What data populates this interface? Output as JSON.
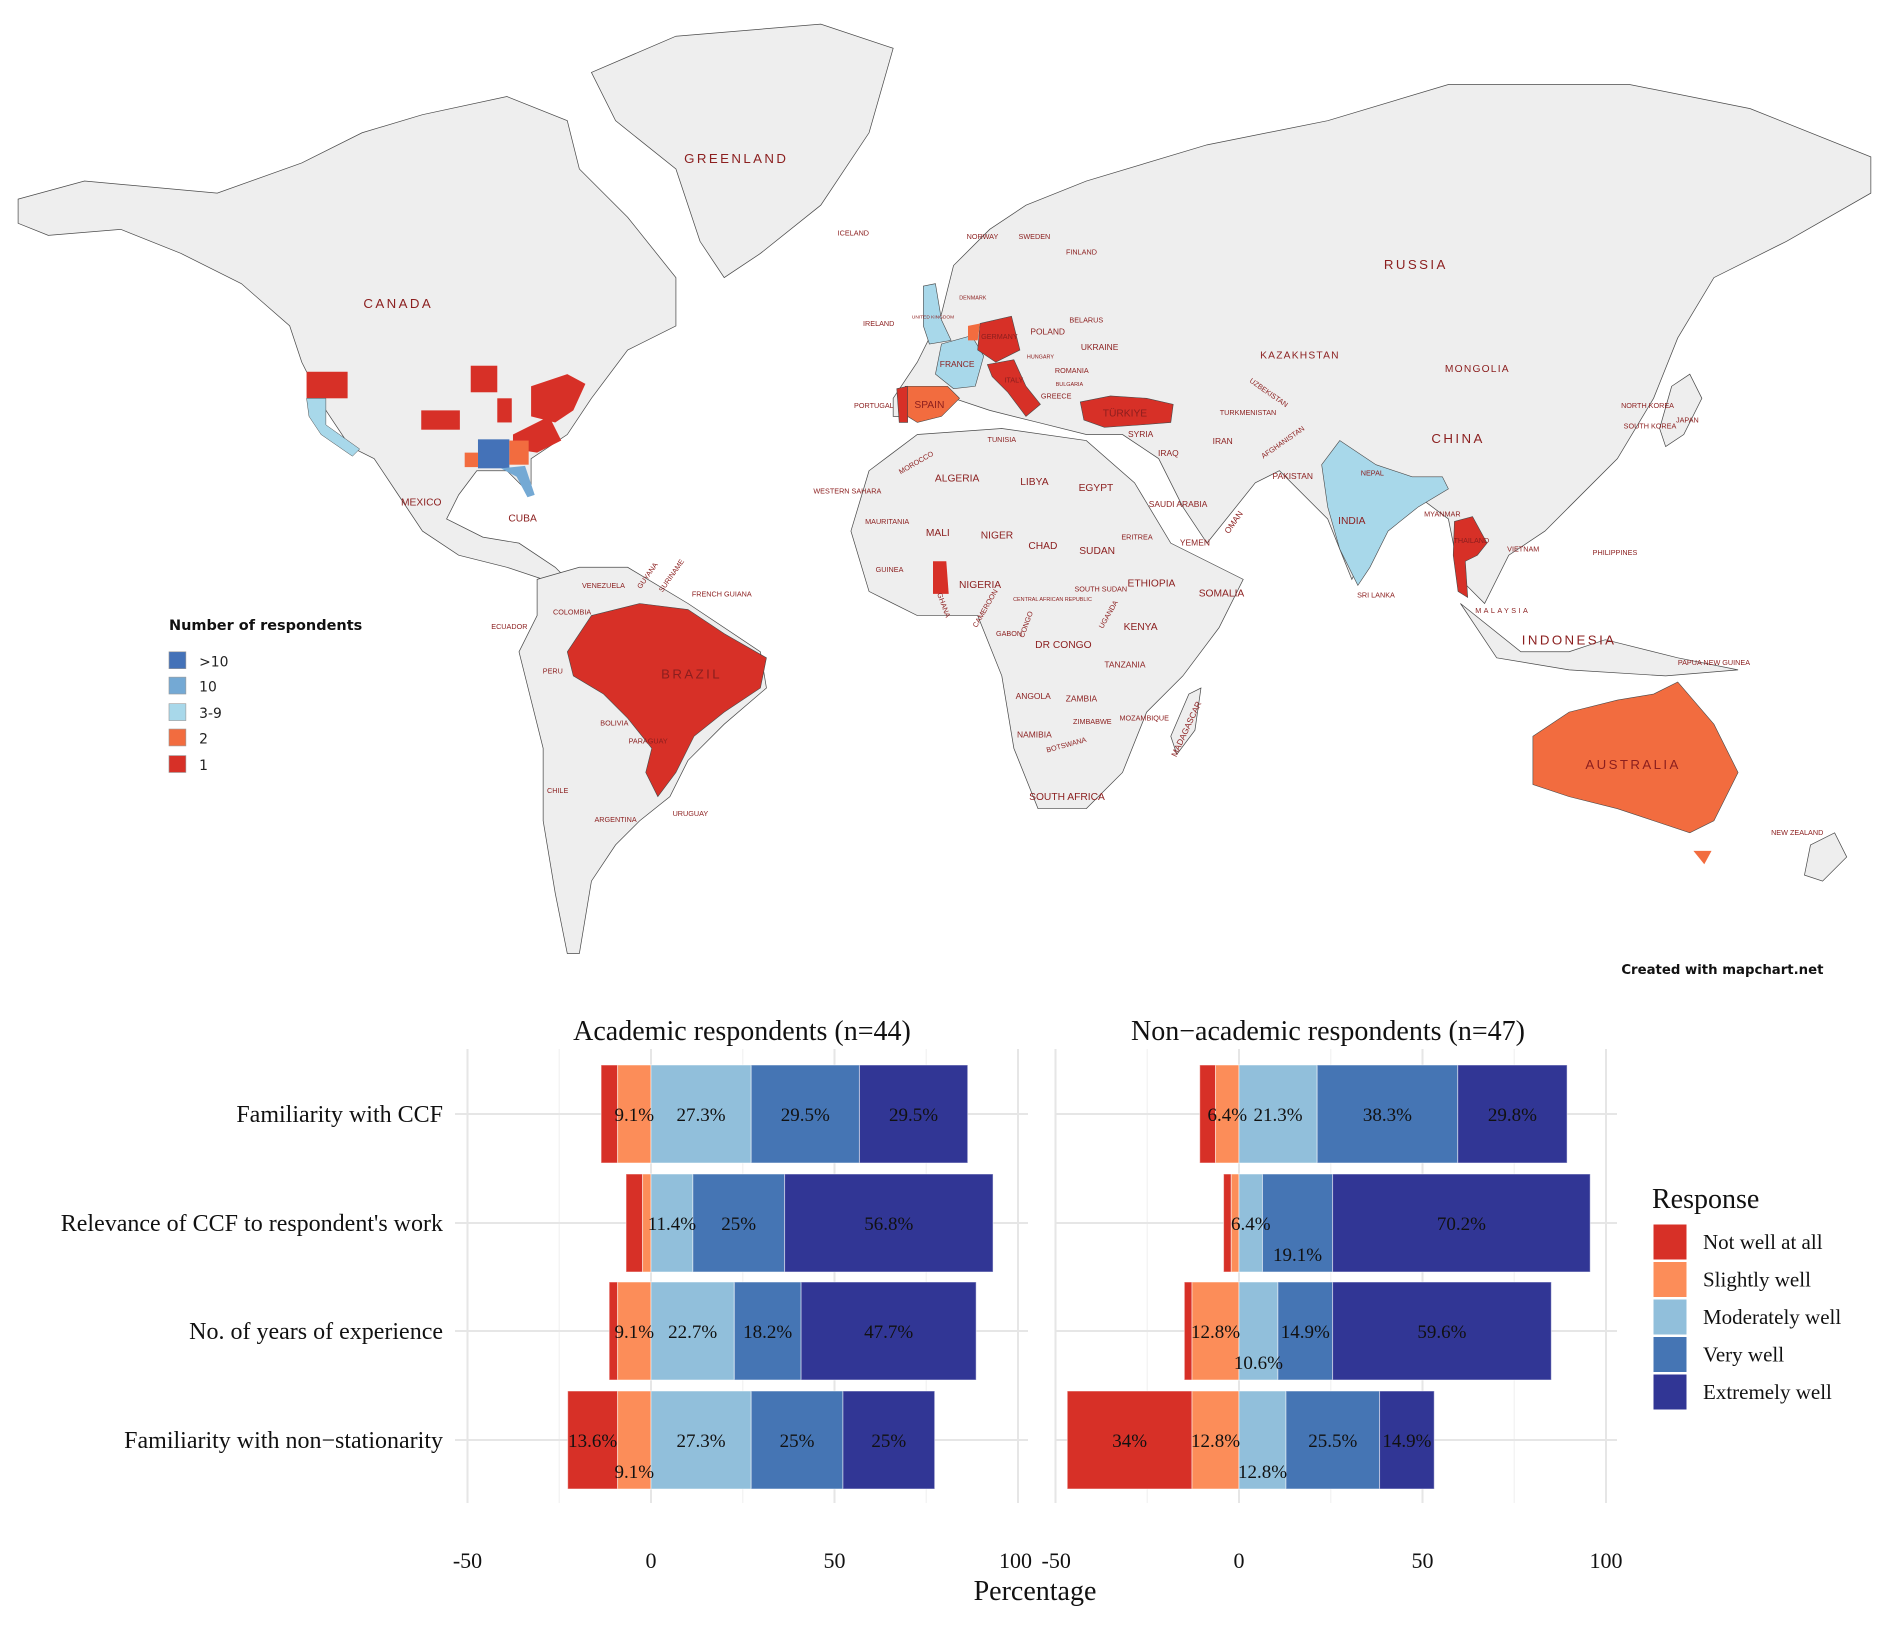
{
  "map": {
    "legend_title": "Number of respondents",
    "legend": [
      {
        "label": ">10",
        "color": "#4472b8"
      },
      {
        "label": "10",
        "color": "#74a9d4"
      },
      {
        "label": "3-9",
        "color": "#a8d8ea"
      },
      {
        "label": "2",
        "color": "#f26c3f"
      },
      {
        "label": "1",
        "color": "#d73027"
      }
    ],
    "credit": "Created with mapchart.net",
    "labels": [
      "GREENLAND",
      "CANADA",
      "RUSSIA",
      "CHINA",
      "KAZAKHSTAN",
      "MONGOLIA",
      "INDIA",
      "BRAZIL",
      "AUSTRALIA",
      "INDONESIA",
      "MEXICO",
      "CUBA",
      "ALGERIA",
      "LIBYA",
      "EGYPT",
      "MALI",
      "NIGER",
      "CHAD",
      "SUDAN",
      "ETHIOPIA",
      "NIGERIA",
      "SOMALIA",
      "KENYA",
      "DR CONGO",
      "TANZANIA",
      "ANGOLA",
      "ZAMBIA",
      "NAMIBIA",
      "SOUTH AFRICA",
      "MADAGASCAR",
      "IRAN",
      "IRAQ",
      "SAUDI ARABIA",
      "YEMEN",
      "OMAN",
      "SYRIA",
      "PAKISTAN",
      "AFGHANISTAN",
      "TURKMENISTAN",
      "UZBEKISTAN",
      "TÜRKIYE",
      "SPAIN",
      "PORTUGAL",
      "FRANCE",
      "GERMANY",
      "POLAND",
      "UKRAINE",
      "BELARUS",
      "ROMANIA",
      "FINLAND",
      "SWEDEN",
      "NORWAY",
      "ICELAND",
      "IRELAND",
      "ITALY",
      "MOROCCO",
      "WESTERN SAHARA",
      "MAURITANIA",
      "GUINEA",
      "COLOMBIA",
      "VENEZUELA",
      "PERU",
      "BOLIVIA",
      "CHILE",
      "ARGENTINA",
      "URUGUAY",
      "PARAGUAY",
      "ECUADOR",
      "GUYANA",
      "SURINAME",
      "FRENCH GUIANA",
      "PHILIPPINES",
      "JAPAN",
      "MALAYSIA",
      "NEW ZEALAND",
      "VIETNAM",
      "THAILAND",
      "MYANMAR",
      "NEPAL",
      "SRI LANKA",
      "PAPUA NEW GUINEA",
      "NORTH KOREA",
      "SOUTH KOREA",
      "GHANA",
      "CAMEROON",
      "GABON",
      "CONGO",
      "BOTSWANA",
      "ZIMBABWE",
      "MOZAMBIQUE",
      "CENTRAL AFRICAN REPUBLIC",
      "SOUTH SUDAN",
      "UGANDA",
      "ERITREA",
      "TUNISIA",
      "GREECE",
      "HUNGARY",
      "BULGARIA",
      "UNITED KINGDOM",
      "DENMARK"
    ]
  },
  "chart_data": {
    "type": "bar",
    "orientation": "horizontal-diverging-stacked",
    "xlabel": "Percentage",
    "xlim": [
      -55,
      105
    ],
    "xticks": [
      "-50",
      "0",
      "50",
      "100"
    ],
    "xtick_values": [
      -50,
      0,
      50,
      100
    ],
    "categories": [
      "Familiarity with CCF",
      "Relevance of CCF to respondent's work",
      "No. of years of experience",
      "Familiarity with non−stationarity"
    ],
    "legend_title": "Response",
    "legend_position": "right",
    "series_names": [
      "Not well at all",
      "Slightly well",
      "Moderately well",
      "Very well",
      "Extremely well"
    ],
    "colors": [
      "#d73027",
      "#fc8d59",
      "#91bfdb",
      "#4575b4",
      "#313695"
    ],
    "panels": [
      {
        "title": "Academic respondents (n=44)",
        "values": [
          [
            4.5,
            9.1,
            27.3,
            29.5,
            29.5
          ],
          [
            4.5,
            2.3,
            11.4,
            25,
            56.8
          ],
          [
            2.3,
            9.1,
            22.7,
            18.2,
            47.7
          ],
          [
            13.6,
            9.1,
            27.3,
            25,
            25
          ]
        ],
        "labels": [
          [
            null,
            "9.1%",
            "27.3%",
            "29.5%",
            "29.5%"
          ],
          [
            null,
            null,
            "11.4%",
            "25%",
            "56.8%"
          ],
          [
            null,
            "9.1%",
            "22.7%",
            "18.2%",
            "47.7%"
          ],
          [
            "13.6%",
            "9.1%",
            "27.3%",
            "25%",
            "25%"
          ]
        ]
      },
      {
        "title": "Non−academic respondents (n=47)",
        "values": [
          [
            4.3,
            6.4,
            21.3,
            38.3,
            29.8
          ],
          [
            2.1,
            2.1,
            6.4,
            19.1,
            70.2
          ],
          [
            2.1,
            12.8,
            10.6,
            14.9,
            59.6
          ],
          [
            34,
            12.8,
            12.8,
            25.5,
            14.9
          ]
        ],
        "labels": [
          [
            null,
            "6.4%",
            "21.3%",
            "38.3%",
            "29.8%"
          ],
          [
            null,
            null,
            "6.4%",
            "19.1%",
            "70.2%"
          ],
          [
            null,
            "12.8%",
            "10.6%",
            "14.9%",
            "59.6%"
          ],
          [
            "34%",
            "12.8%",
            "12.8%",
            "25.5%",
            "14.9%"
          ]
        ]
      }
    ]
  }
}
